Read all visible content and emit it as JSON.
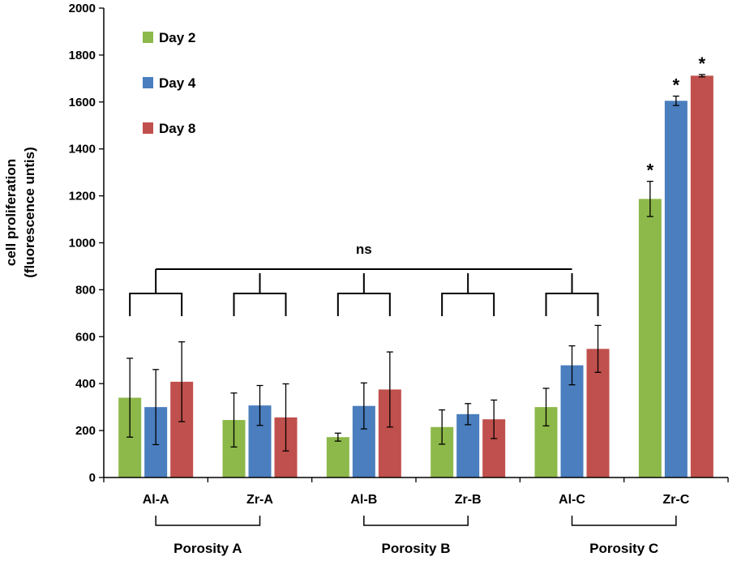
{
  "chart_data": {
    "type": "bar",
    "title": "",
    "xlabel": "",
    "ylabel": [
      "cell proliferation",
      "(fluorescence untis)"
    ],
    "ylim": [
      0,
      2000
    ],
    "ytick_step": 200,
    "yticks": [
      "0",
      "200",
      "400",
      "600",
      "800",
      "1000",
      "1200",
      "1400",
      "1600",
      "1800",
      "2000"
    ],
    "categories": [
      "Al-A",
      "Zr-A",
      "Al-B",
      "Zr-B",
      "Al-C",
      "Zr-C"
    ],
    "series": [
      {
        "name": "Day 2",
        "color": "#8db84a",
        "values": [
          340,
          245,
          172,
          215,
          300,
          1187
        ],
        "errors": [
          168,
          115,
          17,
          73,
          80,
          75
        ]
      },
      {
        "name": "Day 4",
        "color": "#4a7ebe",
        "values": [
          300,
          307,
          305,
          270,
          478,
          1605
        ],
        "errors": [
          160,
          85,
          98,
          45,
          83,
          20
        ]
      },
      {
        "name": "Day 8",
        "color": "#c0504d",
        "values": [
          408,
          256,
          375,
          248,
          548,
          1712
        ],
        "errors": [
          170,
          143,
          160,
          82,
          100,
          5
        ]
      }
    ],
    "significance": {
      "label": "ns",
      "star": "*",
      "star_bars": [
        {
          "category": 5,
          "series": 0
        },
        {
          "category": 5,
          "series": 1
        },
        {
          "category": 5,
          "series": 2
        }
      ]
    },
    "groups": [
      {
        "label": "Porosity A",
        "categories": [
          0,
          1
        ]
      },
      {
        "label": "Porosity B",
        "categories": [
          2,
          3
        ]
      },
      {
        "label": "Porosity C",
        "categories": [
          4,
          5
        ]
      }
    ],
    "legend_position": "top-left"
  }
}
